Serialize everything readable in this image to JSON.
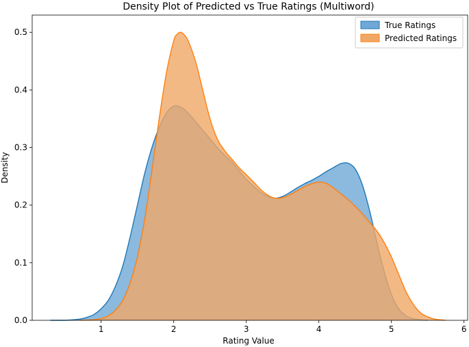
{
  "chart_data": {
    "type": "area",
    "title": "Density Plot of Predicted vs True Ratings (Multiword)",
    "xlabel": "Rating Value",
    "ylabel": "Density",
    "xlim": [
      0.05,
      6.05
    ],
    "ylim": [
      0,
      0.53
    ],
    "xticks": [
      "1",
      "2",
      "3",
      "4",
      "5",
      "6"
    ],
    "yticks": [
      "0.0",
      "0.1",
      "0.2",
      "0.3",
      "0.4",
      "0.5"
    ],
    "grid": false,
    "legend_position": "top-right",
    "series": [
      {
        "name": "True Ratings",
        "fill": "#6fa8d6",
        "line": "#1f77b4",
        "x": [
          0.3,
          0.5,
          0.7,
          0.8,
          0.9,
          1.0,
          1.1,
          1.2,
          1.3,
          1.4,
          1.5,
          1.6,
          1.7,
          1.8,
          1.9,
          2.0,
          2.1,
          2.2,
          2.3,
          2.4,
          2.5,
          2.6,
          2.7,
          2.8,
          2.9,
          3.0,
          3.1,
          3.2,
          3.3,
          3.4,
          3.5,
          3.6,
          3.7,
          3.8,
          3.9,
          4.0,
          4.1,
          4.2,
          4.3,
          4.4,
          4.5,
          4.6,
          4.7,
          4.8,
          4.9,
          5.0,
          5.1,
          5.2,
          5.3,
          5.4,
          5.5
        ],
        "y": [
          0.0,
          0.0,
          0.002,
          0.005,
          0.01,
          0.02,
          0.035,
          0.06,
          0.095,
          0.145,
          0.2,
          0.255,
          0.3,
          0.335,
          0.36,
          0.372,
          0.37,
          0.36,
          0.345,
          0.33,
          0.315,
          0.3,
          0.287,
          0.275,
          0.26,
          0.245,
          0.233,
          0.222,
          0.215,
          0.212,
          0.215,
          0.222,
          0.23,
          0.237,
          0.243,
          0.25,
          0.258,
          0.265,
          0.272,
          0.273,
          0.263,
          0.235,
          0.19,
          0.135,
          0.085,
          0.045,
          0.02,
          0.008,
          0.003,
          0.001,
          0.0
        ]
      },
      {
        "name": "Predicted Ratings",
        "fill": "#f0a867",
        "line": "#ff7f0e",
        "x": [
          0.7,
          0.9,
          1.0,
          1.1,
          1.2,
          1.3,
          1.4,
          1.5,
          1.6,
          1.7,
          1.8,
          1.9,
          2.0,
          2.05,
          2.1,
          2.15,
          2.2,
          2.3,
          2.4,
          2.5,
          2.6,
          2.7,
          2.8,
          2.9,
          3.0,
          3.1,
          3.2,
          3.3,
          3.4,
          3.5,
          3.6,
          3.7,
          3.8,
          3.9,
          4.0,
          4.1,
          4.2,
          4.3,
          4.4,
          4.5,
          4.6,
          4.7,
          4.8,
          4.9,
          5.0,
          5.1,
          5.2,
          5.3,
          5.4,
          5.5,
          5.6,
          5.75
        ],
        "y": [
          0.0,
          0.001,
          0.003,
          0.008,
          0.018,
          0.035,
          0.065,
          0.11,
          0.175,
          0.26,
          0.35,
          0.43,
          0.485,
          0.497,
          0.5,
          0.495,
          0.485,
          0.45,
          0.4,
          0.35,
          0.315,
          0.295,
          0.28,
          0.265,
          0.253,
          0.24,
          0.227,
          0.217,
          0.212,
          0.213,
          0.218,
          0.225,
          0.232,
          0.237,
          0.24,
          0.238,
          0.23,
          0.22,
          0.21,
          0.198,
          0.185,
          0.17,
          0.155,
          0.135,
          0.11,
          0.08,
          0.05,
          0.028,
          0.013,
          0.006,
          0.002,
          0.0
        ]
      }
    ]
  }
}
